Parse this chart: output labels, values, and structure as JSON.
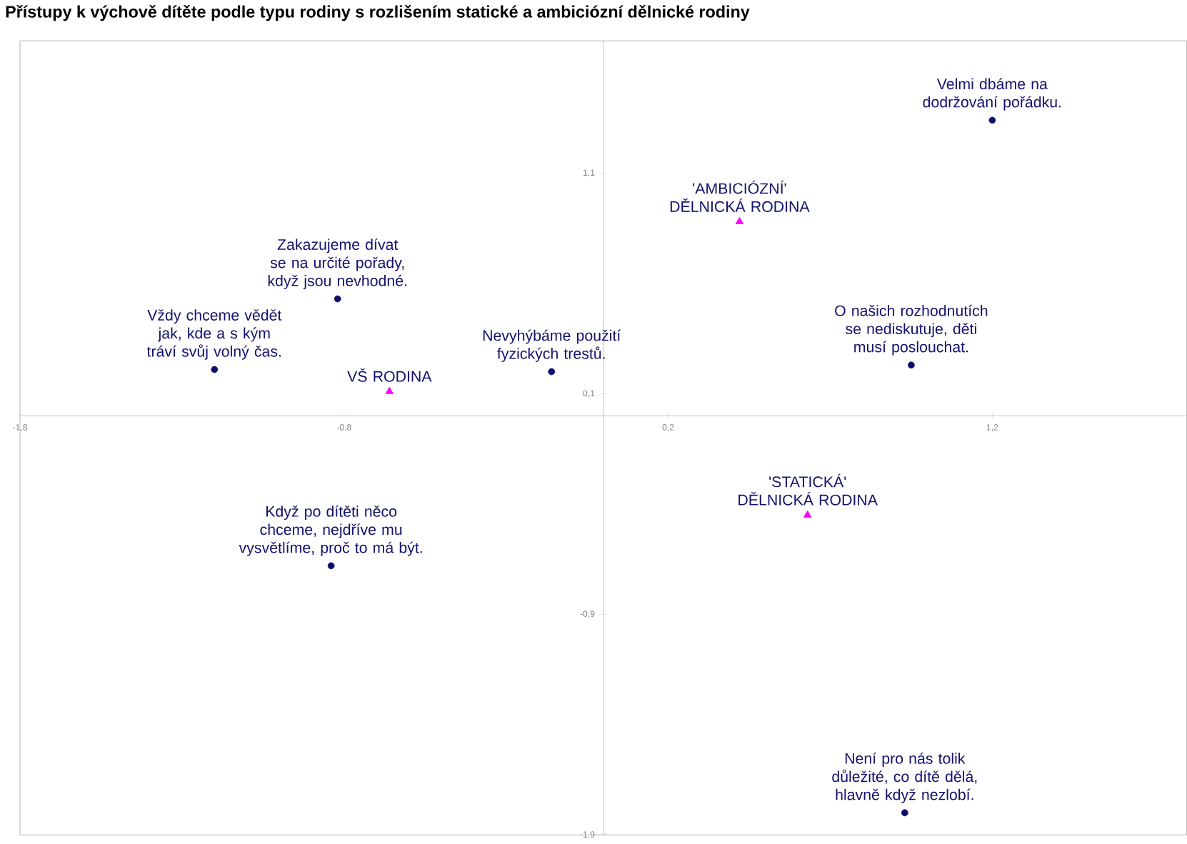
{
  "chart_data": {
    "type": "scatter",
    "title": "Přístupy k výchově dítěte podle typu rodiny s rozlišením statické a ambiciózní dělnické rodiny",
    "xlim": [
      -1.8,
      1.8
    ],
    "ylim": [
      -1.9,
      1.7
    ],
    "xticks": [
      {
        "value": -1.8,
        "label": "-1,8"
      },
      {
        "value": -0.8,
        "label": "-0,8"
      },
      {
        "value": 0.2,
        "label": "0,2"
      },
      {
        "value": 1.2,
        "label": "1,2"
      }
    ],
    "yticks": [
      {
        "value": -1.9,
        "label": "-1,9"
      },
      {
        "value": -0.9,
        "label": "-0,9"
      },
      {
        "value": 0.1,
        "label": "0,1"
      },
      {
        "value": 1.1,
        "label": "1,1"
      }
    ],
    "series": [
      {
        "color": "#0d0d6b",
        "marker": "circle",
        "x": [
          1.2,
          -0.82,
          -1.2,
          -0.16,
          0.95,
          -0.84,
          0.93
        ],
        "values": [
          1.34,
          0.53,
          0.21,
          0.2,
          0.23,
          -0.68,
          -1.8
        ]
      },
      {
        "color": "#ff00ff",
        "marker": "triangle",
        "x": [
          0.42,
          -0.66,
          0.63
        ],
        "values": [
          0.88,
          0.11,
          -0.45
        ]
      }
    ],
    "annotations": [
      {
        "text": "Velmi dbáme na dodržování pořádku.",
        "x": 1.2,
        "y": 1.34
      },
      {
        "text": "Zakazujeme dívat se na určité pořady, když jsou nevhodné.",
        "x": -0.82,
        "y": 0.53
      },
      {
        "text": "Vždy chceme vědět jak, kde a s kým tráví svůj volný čas.",
        "x": -1.2,
        "y": 0.21
      },
      {
        "text": "Nevyhýbáme použití fyzických trestů.",
        "x": -0.16,
        "y": 0.2
      },
      {
        "text": "O našich rozhodnutích se nediskutuje, děti musí poslouchat.",
        "x": 0.95,
        "y": 0.23
      },
      {
        "text": "Když po dítěti něco chceme, nejdříve mu vysvětlíme, proč to má být.",
        "x": -0.84,
        "y": -0.68
      },
      {
        "text": "Není pro nás tolik důležité, co dítě dělá, hlavně když nezlobí.",
        "x": 0.93,
        "y": -1.8
      },
      {
        "text": "'AMBICIÓZNÍ' DĚLNICKÁ RODINA",
        "x": 0.42,
        "y": 0.88
      },
      {
        "text": "VŠ RODINA",
        "x": -0.66,
        "y": 0.11
      },
      {
        "text": "'STATICKÁ' DĚLNICKÁ RODINA",
        "x": 0.63,
        "y": -0.45
      }
    ]
  }
}
